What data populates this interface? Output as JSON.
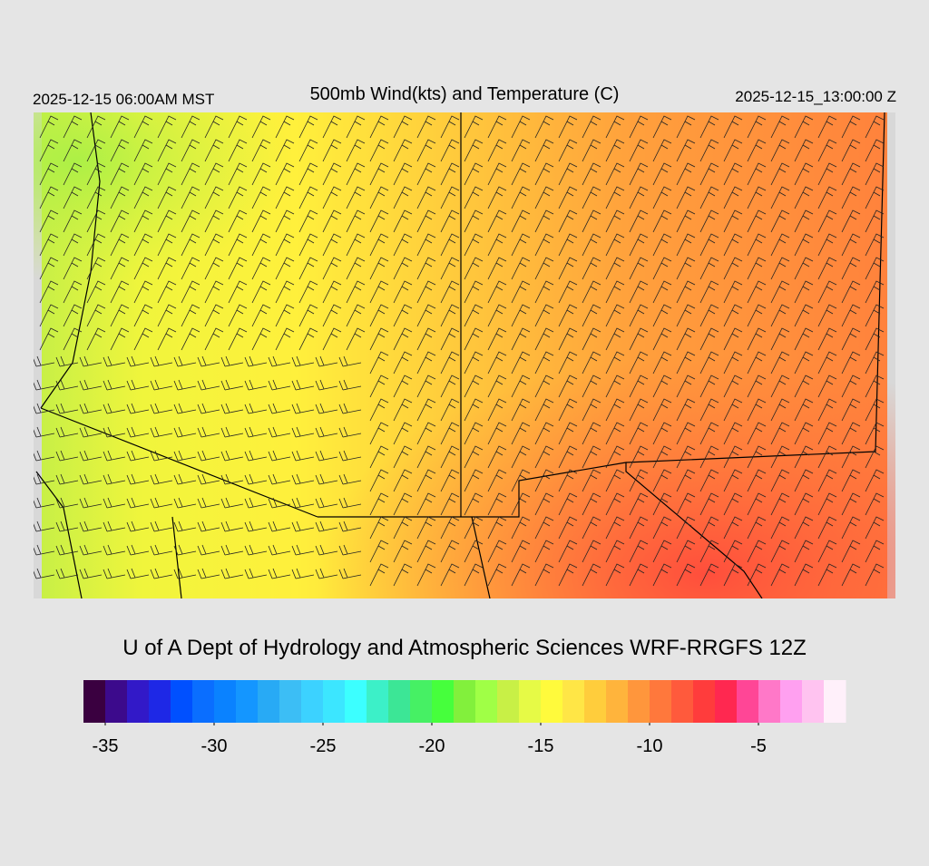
{
  "header": {
    "valid_local": "2025-12-15 06:00AM MST",
    "title": "500mb Wind(kts) and Temperature (C)",
    "valid_utc": "2025-12-15_13:00:00 Z"
  },
  "credit": "U of A Dept of Hydrology and Atmospheric Sciences WRF-RRGFS 12Z",
  "colorbar": {
    "lim": [
      -36,
      -1
    ],
    "ticks": [
      -35,
      -30,
      -25,
      -20,
      -15,
      -10,
      -5
    ],
    "colors": [
      "#3a0040",
      "#3c0a8c",
      "#3219c8",
      "#1e28e6",
      "#0050ff",
      "#0a6eff",
      "#0a82ff",
      "#1496ff",
      "#28aaf5",
      "#3cbef5",
      "#3cd2ff",
      "#3ce6ff",
      "#3cffff",
      "#3cf0c8",
      "#3ce696",
      "#46f064",
      "#46ff3c",
      "#82f03c",
      "#a0ff46",
      "#c8f046",
      "#e6fa46",
      "#fffa3c",
      "#ffe646",
      "#ffcd3c",
      "#ffb43c",
      "#ff963c",
      "#ff783c",
      "#ff5a3c",
      "#ff3c3c",
      "#ff2850",
      "#ff4696",
      "#ff78c8",
      "#ffa0f0",
      "#ffc3f0",
      "#fff0fa"
    ]
  }
}
